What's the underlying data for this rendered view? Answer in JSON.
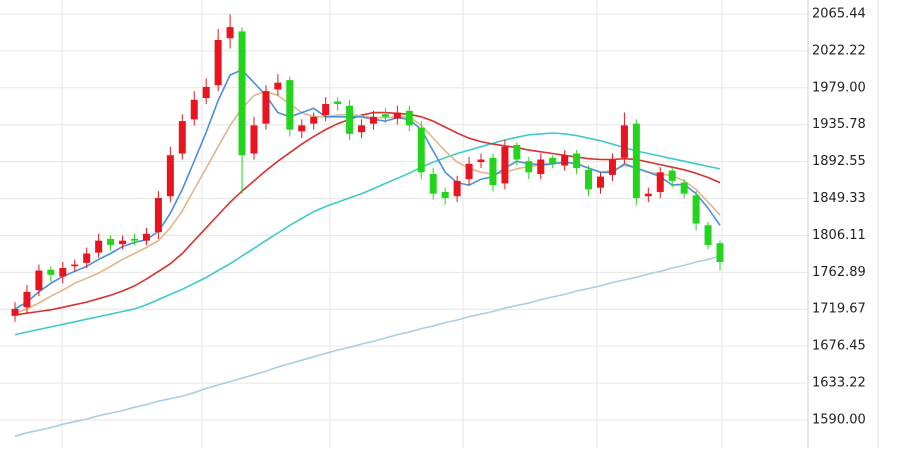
{
  "chart_data": {
    "type": "candlestick",
    "up_color": "#e8141e",
    "down_color": "#22d41c",
    "ylim": [
      1560.7,
      2081.8
    ],
    "yticks": [
      2065.44,
      2022.22,
      {
        "value": 1979.0,
        "label": "1979.00"
      },
      1935.78,
      1892.55,
      1849.33,
      1806.11,
      1762.89,
      1719.67,
      1676.45,
      1633.22,
      {
        "value": 1590.0,
        "label": "1590.00"
      }
    ],
    "grid": true,
    "open": [
      1712,
      1722,
      1742,
      1766,
      1758,
      1770,
      1774,
      1786,
      1802,
      1796,
      1802,
      1800,
      1810,
      1852,
      1902,
      1942,
      1967,
      1982,
      2037,
      2045,
      1902,
      1937,
      1977,
      1988,
      1928,
      1937,
      1947,
      1963,
      1958,
      1927,
      1937,
      1948,
      1943,
      1952,
      1932,
      1878,
      1857,
      1852,
      1872,
      1892,
      1897,
      1867,
      1912,
      1893,
      1878,
      1897,
      1888,
      1902,
      1883,
      1862,
      1877,
      1897,
      1937,
      1852,
      1857,
      1882,
      1868,
      1853,
      1818,
      1797
    ],
    "high": [
      1728,
      1748,
      1772,
      1770,
      1775,
      1778,
      1792,
      1808,
      1806,
      1806,
      1808,
      1815,
      1858,
      1910,
      1948,
      1975,
      1990,
      2048,
      2065,
      2050,
      1945,
      1982,
      1995,
      1992,
      1942,
      1950,
      1968,
      1968,
      1965,
      1942,
      1952,
      1955,
      1958,
      1958,
      1940,
      1885,
      1862,
      1876,
      1898,
      1902,
      1902,
      1918,
      1915,
      1898,
      1902,
      1900,
      1906,
      1906,
      1888,
      1880,
      1902,
      1950,
      1942,
      1862,
      1886,
      1885,
      1872,
      1858,
      1822,
      1800
    ],
    "low": [
      1705,
      1715,
      1735,
      1752,
      1750,
      1764,
      1768,
      1780,
      1788,
      1790,
      1795,
      1795,
      1802,
      1845,
      1895,
      1935,
      1960,
      1975,
      2025,
      1855,
      1895,
      1930,
      1970,
      1922,
      1920,
      1930,
      1940,
      1952,
      1918,
      1920,
      1930,
      1938,
      1936,
      1928,
      1872,
      1848,
      1842,
      1845,
      1865,
      1885,
      1858,
      1860,
      1888,
      1872,
      1872,
      1885,
      1882,
      1878,
      1852,
      1855,
      1870,
      1890,
      1842,
      1845,
      1850,
      1862,
      1850,
      1812,
      1790,
      1765
    ],
    "close": [
      1720,
      1740,
      1765,
      1760,
      1768,
      1772,
      1785,
      1800,
      1795,
      1800,
      1800,
      1808,
      1850,
      1900,
      1940,
      1965,
      1980,
      2035,
      2050,
      1900,
      1935,
      1975,
      1985,
      1930,
      1935,
      1945,
      1960,
      1960,
      1925,
      1935,
      1945,
      1945,
      1950,
      1935,
      1880,
      1855,
      1850,
      1870,
      1890,
      1895,
      1865,
      1910,
      1895,
      1880,
      1895,
      1890,
      1900,
      1885,
      1860,
      1875,
      1895,
      1935,
      1850,
      1855,
      1880,
      1870,
      1855,
      1820,
      1795,
      1775
    ],
    "series": [
      {
        "color": "#a9cde2",
        "values": [
          1571,
          1575,
          1578,
          1581,
          1585,
          1588,
          1591,
          1595,
          1598,
          1601,
          1605,
          1608,
          1612,
          1615,
          1618,
          1622,
          1627,
          1631,
          1635,
          1639,
          1643,
          1647,
          1652,
          1656,
          1660,
          1664,
          1668,
          1672,
          1675,
          1679,
          1682,
          1686,
          1690,
          1693,
          1697,
          1700,
          1704,
          1707,
          1711,
          1714,
          1717,
          1721,
          1724,
          1727,
          1731,
          1734,
          1737,
          1741,
          1744,
          1747,
          1751,
          1754,
          1757,
          1761,
          1764,
          1768,
          1771,
          1775,
          1778,
          1782
        ]
      },
      {
        "color": "#3fc9c9",
        "values": [
          1690,
          1693,
          1696,
          1699,
          1702,
          1705,
          1708,
          1711,
          1714,
          1717,
          1720,
          1725,
          1731,
          1737,
          1743,
          1750,
          1757,
          1765,
          1773,
          1782,
          1791,
          1800,
          1809,
          1818,
          1826,
          1834,
          1840,
          1845,
          1850,
          1855,
          1861,
          1867,
          1873,
          1879,
          1886,
          1892,
          1897,
          1902,
          1906,
          1910,
          1914,
          1918,
          1921,
          1924,
          1925,
          1926,
          1925,
          1923,
          1920,
          1917,
          1913,
          1909,
          1905,
          1902,
          1899,
          1896,
          1893,
          1890,
          1887,
          1884
        ]
      },
      {
        "color": "#d6322f",
        "values": [
          1713,
          1715,
          1717,
          1719,
          1722,
          1725,
          1728,
          1732,
          1736,
          1741,
          1747,
          1755,
          1764,
          1773,
          1785,
          1800,
          1815,
          1830,
          1845,
          1858,
          1870,
          1882,
          1893,
          1903,
          1913,
          1922,
          1930,
          1937,
          1942,
          1947,
          1950,
          1950,
          1949,
          1948,
          1945,
          1940,
          1933,
          1926,
          1920,
          1916,
          1913,
          1911,
          1909,
          1906,
          1904,
          1902,
          1900,
          1898,
          1896,
          1895,
          1895,
          1896,
          1895,
          1892,
          1889,
          1886,
          1883,
          1879,
          1874,
          1868
        ]
      },
      {
        "color": "#e4b48a",
        "values": [
          1715,
          1720,
          1727,
          1735,
          1742,
          1750,
          1756,
          1762,
          1770,
          1778,
          1785,
          1792,
          1800,
          1815,
          1835,
          1860,
          1885,
          1910,
          1935,
          1955,
          1970,
          1975,
          1970,
          1960,
          1950,
          1945,
          1945,
          1947,
          1948,
          1946,
          1944,
          1944,
          1945,
          1945,
          1935,
          1920,
          1905,
          1892,
          1885,
          1880,
          1878,
          1880,
          1884,
          1887,
          1888,
          1890,
          1892,
          1890,
          1885,
          1880,
          1882,
          1888,
          1885,
          1880,
          1878,
          1876,
          1870,
          1860,
          1845,
          1830
        ]
      },
      {
        "color": "#4a8fe0",
        "values": [
          1720,
          1728,
          1740,
          1750,
          1758,
          1764,
          1770,
          1778,
          1785,
          1793,
          1798,
          1801,
          1811,
          1832,
          1860,
          1893,
          1927,
          1964,
          1994,
          2000,
          1985,
          1970,
          1950,
          1945,
          1950,
          1955,
          1945,
          1945,
          1945,
          1945,
          1942,
          1940,
          1944,
          1942,
          1930,
          1905,
          1880,
          1868,
          1865,
          1872,
          1875,
          1885,
          1893,
          1890,
          1889,
          1890,
          1892,
          1890,
          1885,
          1880,
          1880,
          1890,
          1885,
          1880,
          1875,
          1865,
          1866,
          1855,
          1838,
          1818
        ]
      }
    ]
  }
}
